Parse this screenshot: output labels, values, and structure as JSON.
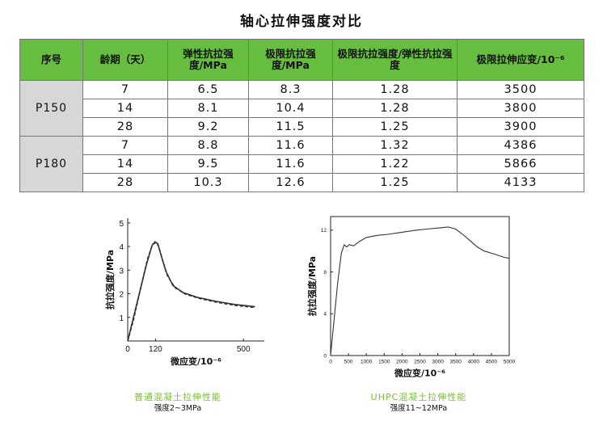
{
  "title": "轴心拉伸强度对比",
  "table": {
    "headers": [
      "序号",
      "龄期（天）",
      "弹性抗拉强度/MPa",
      "极限抗拉强度/MPa",
      "极限抗拉强度/弹性抗拉强度",
      "极限拉伸应变/10⁻⁶"
    ],
    "groups": [
      {
        "name": "P150",
        "rows": [
          [
            "7",
            "6.5",
            "8.3",
            "1.28",
            "3500"
          ],
          [
            "14",
            "8.1",
            "10.4",
            "1.28",
            "3800"
          ],
          [
            "28",
            "9.2",
            "11.5",
            "1.25",
            "3900"
          ]
        ]
      },
      {
        "name": "P180",
        "rows": [
          [
            "7",
            "8.8",
            "11.6",
            "1.32",
            "4386"
          ],
          [
            "14",
            "9.5",
            "11.6",
            "1.22",
            "5866"
          ],
          [
            "28",
            "10.3",
            "12.6",
            "1.25",
            "4133"
          ]
        ]
      }
    ]
  },
  "colors": {
    "header_bg": "#67bd3f",
    "group_bg": "#d7d7d7",
    "caption": "#7cbd3c"
  },
  "chart_data": [
    {
      "type": "line",
      "xlabel": "微应变/10⁻⁶",
      "ylabel": "抗拉强度/MPa",
      "xlim": [
        0,
        590
      ],
      "ylim": [
        0,
        5.2
      ],
      "xticks": [
        0,
        120,
        500
      ],
      "yticks": [
        1,
        2,
        3,
        4,
        5
      ],
      "series": [
        {
          "style": "solid",
          "points": [
            [
              0,
              0
            ],
            [
              20,
              0.8
            ],
            [
              50,
              2.0
            ],
            [
              80,
              3.2
            ],
            [
              105,
              4.05
            ],
            [
              118,
              4.2
            ],
            [
              130,
              4.12
            ],
            [
              145,
              3.6
            ],
            [
              165,
              2.95
            ],
            [
              195,
              2.35
            ],
            [
              240,
              2.05
            ],
            [
              300,
              1.85
            ],
            [
              380,
              1.68
            ],
            [
              460,
              1.55
            ],
            [
              550,
              1.45
            ]
          ]
        },
        {
          "style": "dashed",
          "points": [
            [
              0,
              0
            ],
            [
              25,
              0.9
            ],
            [
              55,
              2.2
            ],
            [
              85,
              3.45
            ],
            [
              108,
              4.1
            ],
            [
              120,
              4.15
            ],
            [
              132,
              4.05
            ],
            [
              150,
              3.45
            ],
            [
              172,
              2.75
            ],
            [
              205,
              2.25
            ],
            [
              250,
              1.98
            ],
            [
              310,
              1.8
            ],
            [
              390,
              1.63
            ],
            [
              470,
              1.5
            ],
            [
              550,
              1.42
            ]
          ]
        }
      ],
      "caption": "普通混凝土拉伸性能",
      "subcaption": "强度2~3MPa"
    },
    {
      "type": "line",
      "xlabel": "微应变/10⁻⁶",
      "ylabel": "抗拉强度/MPa",
      "xlim": [
        0,
        5000
      ],
      "ylim": [
        0,
        13.3
      ],
      "xticks": [
        0,
        500,
        1000,
        1500,
        2000,
        2500,
        3000,
        3500,
        4000,
        4500,
        5000
      ],
      "yticks": [
        0,
        4,
        8,
        12
      ],
      "series": [
        {
          "style": "solid",
          "points": [
            [
              0,
              0
            ],
            [
              100,
              3.5
            ],
            [
              200,
              7.0
            ],
            [
              300,
              9.8
            ],
            [
              380,
              10.6
            ],
            [
              450,
              10.4
            ],
            [
              520,
              10.6
            ],
            [
              650,
              10.5
            ],
            [
              800,
              10.9
            ],
            [
              1000,
              11.3
            ],
            [
              1300,
              11.5
            ],
            [
              1600,
              11.6
            ],
            [
              2000,
              11.8
            ],
            [
              2400,
              12.0
            ],
            [
              2700,
              12.1
            ],
            [
              3000,
              12.2
            ],
            [
              3300,
              12.3
            ],
            [
              3500,
              12.1
            ],
            [
              3700,
              11.6
            ],
            [
              3900,
              11.0
            ],
            [
              4100,
              10.4
            ],
            [
              4300,
              10.0
            ],
            [
              4600,
              9.7
            ],
            [
              4850,
              9.4
            ],
            [
              5000,
              9.3
            ]
          ]
        }
      ],
      "caption": "UHPC混凝土拉伸性能",
      "subcaption": "强度11~12MPa"
    }
  ]
}
